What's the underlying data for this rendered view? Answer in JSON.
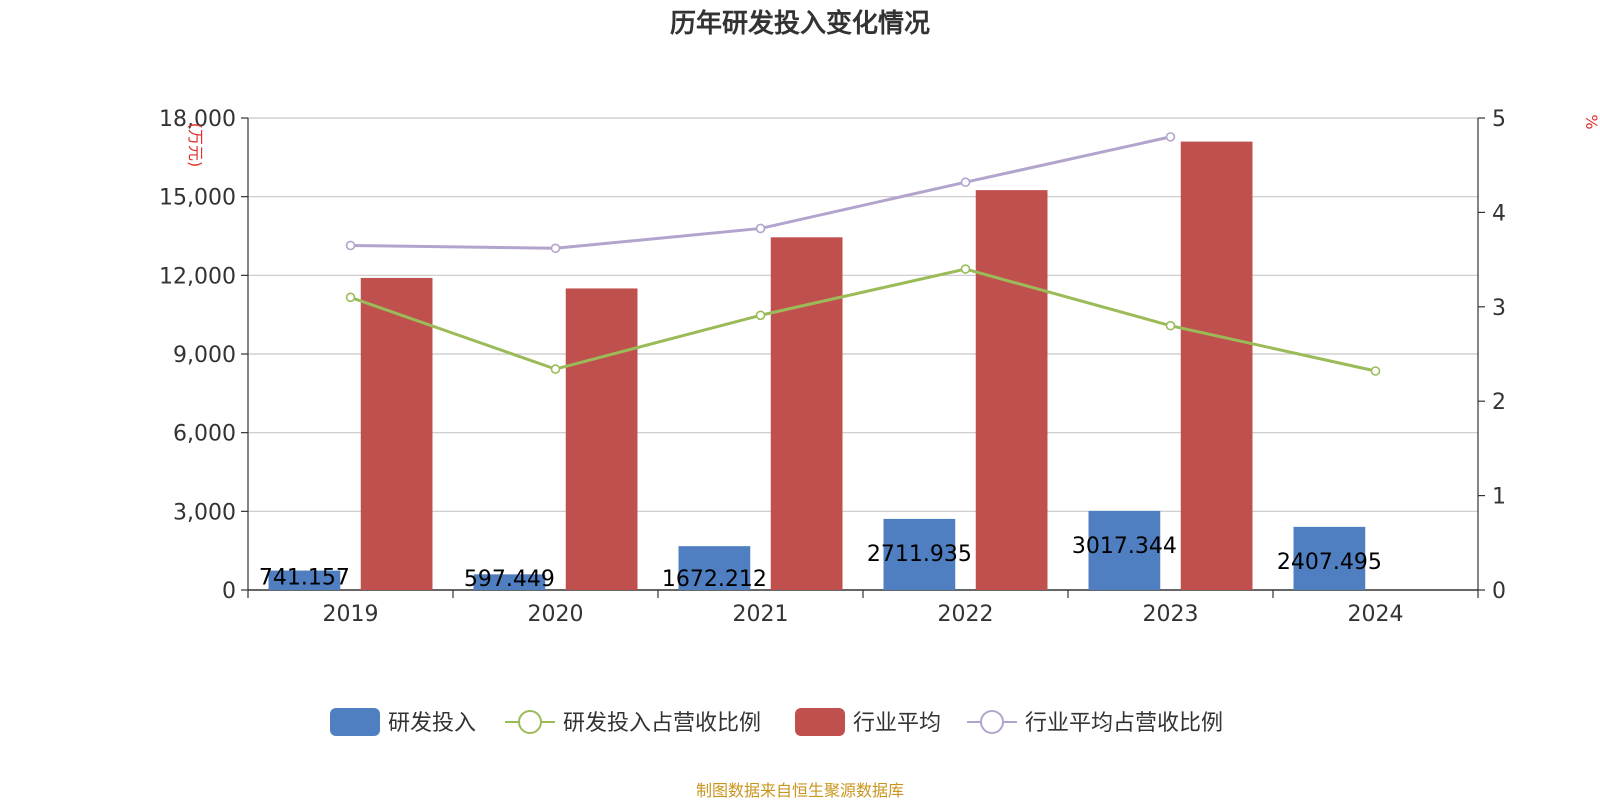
{
  "chart_data": {
    "type": "bar",
    "title": "历年研发投入变化情况",
    "categories": [
      "2019",
      "2020",
      "2021",
      "2022",
      "2023",
      "2024"
    ],
    "left_axis": {
      "unit": "(万元)",
      "ylim": [
        0,
        18000
      ],
      "ticks": [
        0,
        3000,
        6000,
        9000,
        12000,
        15000,
        18000
      ],
      "tick_labels": [
        "0",
        "3,000",
        "6,000",
        "9,000",
        "12,000",
        "15,000",
        "18,000"
      ]
    },
    "right_axis": {
      "unit": "%",
      "ylim": [
        0,
        5
      ],
      "ticks": [
        0,
        1,
        2,
        3,
        4,
        5
      ],
      "tick_labels": [
        "0",
        "1",
        "2",
        "3",
        "4",
        "5"
      ]
    },
    "grid": true,
    "series": [
      {
        "name": "研发投入",
        "type": "bar",
        "axis": "left",
        "color": "#4f7fc0",
        "values": [
          741.157,
          597.449,
          1672.212,
          2711.935,
          3017.344,
          2407.495
        ],
        "labels": [
          "741.157",
          "597.449",
          "1672.212",
          "2711.935",
          "3017.344",
          "2407.495"
        ]
      },
      {
        "name": "研发投入占营收比例",
        "type": "line",
        "axis": "right",
        "color": "#9bbb59",
        "values": [
          3.1,
          2.34,
          2.91,
          3.4,
          2.8,
          2.32
        ]
      },
      {
        "name": "行业平均",
        "type": "bar",
        "axis": "left",
        "color": "#c0504d",
        "values": [
          11900,
          11500,
          13450,
          15250,
          17100,
          null
        ]
      },
      {
        "name": "行业平均占营收比例",
        "type": "line",
        "axis": "right",
        "color": "#b3a4cd",
        "values": [
          3.65,
          3.62,
          3.83,
          4.32,
          4.8,
          null
        ]
      }
    ],
    "legend_position": "bottom",
    "source": "制图数据来自恒生聚源数据库"
  }
}
